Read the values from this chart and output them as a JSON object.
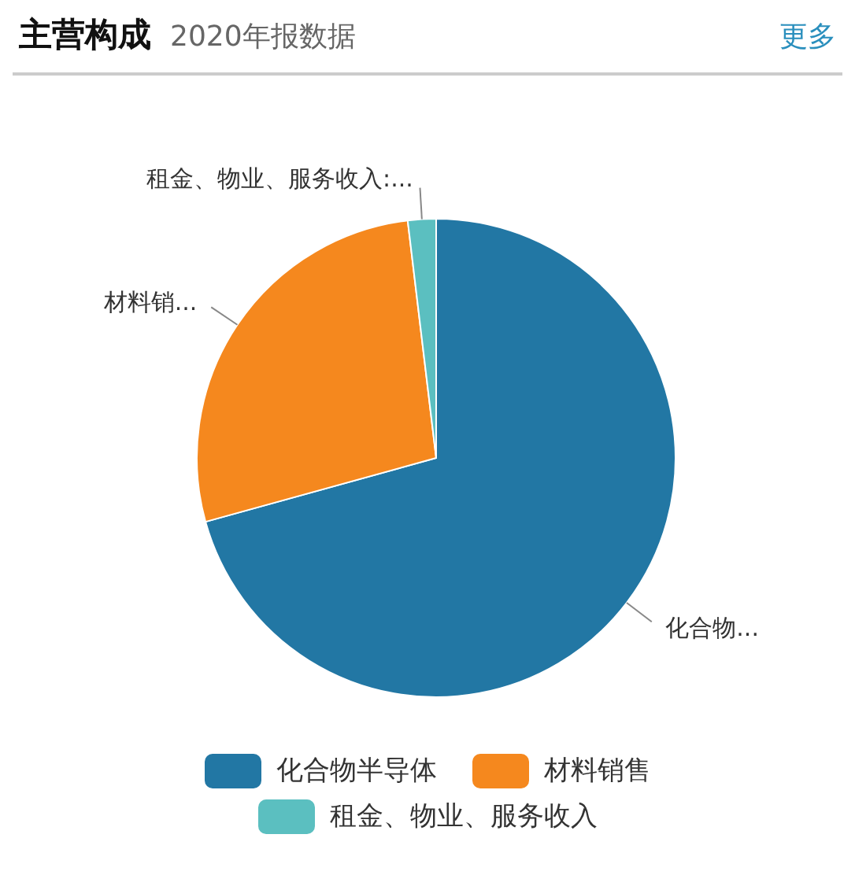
{
  "chart_data": {
    "type": "pie",
    "title": "主营构成",
    "subtitle": "2020年报数据",
    "annotations": [
      "更多"
    ],
    "categories": [
      "化合物半导体",
      "材料销售",
      "租金、物业、服务收入"
    ],
    "values": [
      70.7,
      27.4,
      1.9
    ],
    "colors": [
      "#2277a4",
      "#f5881e",
      "#5bbfc0"
    ],
    "value_labels": [
      "化合物...",
      "材料销...",
      "租金、物业、服务收入:..."
    ],
    "legend": "bottom"
  }
}
